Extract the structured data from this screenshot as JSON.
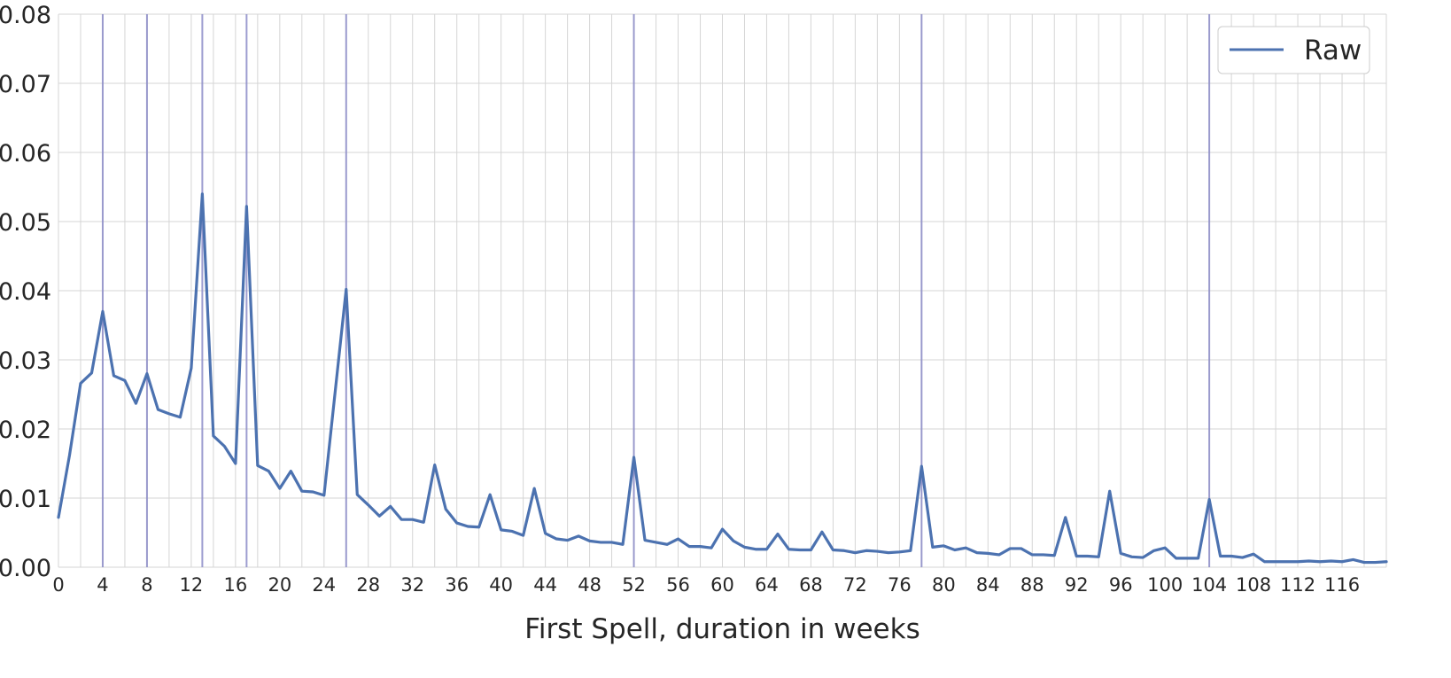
{
  "chart_data": {
    "type": "line",
    "title": "",
    "xlabel": "First Spell, duration in weeks",
    "ylabel": "",
    "xlim": [
      0,
      120
    ],
    "ylim": [
      0,
      0.08
    ],
    "grid": true,
    "legend_position": "top-right",
    "x_ticks": [
      0,
      4,
      8,
      12,
      16,
      20,
      24,
      28,
      32,
      36,
      40,
      44,
      48,
      52,
      56,
      60,
      64,
      68,
      72,
      76,
      80,
      84,
      88,
      92,
      96,
      100,
      104,
      108,
      112,
      116
    ],
    "y_ticks": [
      "0.00",
      "0.01",
      "0.02",
      "0.03",
      "0.04",
      "0.05",
      "0.06",
      "0.07",
      "0.08"
    ],
    "y_tick_values": [
      0,
      0.01,
      0.02,
      0.03,
      0.04,
      0.05,
      0.06,
      0.07,
      0.08
    ],
    "vertical_lines": [
      4,
      8,
      13,
      17,
      26,
      52,
      78,
      104
    ],
    "vertical_line_color": "#8c8cc8",
    "colors": {
      "series": "#4c72b0",
      "grid": "#d5d5d5"
    },
    "series": [
      {
        "name": "Raw",
        "x": [
          0,
          1,
          2,
          3,
          4,
          5,
          6,
          7,
          8,
          9,
          10,
          11,
          12,
          13,
          14,
          15,
          16,
          17,
          18,
          19,
          20,
          21,
          22,
          23,
          24,
          25,
          26,
          27,
          28,
          29,
          30,
          31,
          32,
          33,
          34,
          35,
          36,
          37,
          38,
          39,
          40,
          41,
          42,
          43,
          44,
          45,
          46,
          47,
          48,
          49,
          50,
          51,
          52,
          53,
          54,
          55,
          56,
          57,
          58,
          59,
          60,
          61,
          62,
          63,
          64,
          65,
          66,
          67,
          68,
          69,
          70,
          71,
          72,
          73,
          74,
          75,
          76,
          77,
          78,
          79,
          80,
          81,
          82,
          83,
          84,
          85,
          86,
          87,
          88,
          89,
          90,
          91,
          92,
          93,
          94,
          95,
          96,
          97,
          98,
          99,
          100,
          101,
          102,
          103,
          104,
          105,
          106,
          107,
          108,
          109,
          110,
          111,
          112,
          113,
          114,
          115,
          116,
          117,
          118,
          119,
          120
        ],
        "values": [
          0.0072,
          0.0162,
          0.0266,
          0.0281,
          0.037,
          0.0277,
          0.027,
          0.0237,
          0.028,
          0.0228,
          0.0222,
          0.0217,
          0.0288,
          0.054,
          0.019,
          0.0175,
          0.015,
          0.0522,
          0.0147,
          0.0139,
          0.0114,
          0.0139,
          0.011,
          0.0109,
          0.0104,
          0.0253,
          0.0402,
          0.0105,
          0.009,
          0.0074,
          0.0088,
          0.0069,
          0.0069,
          0.0065,
          0.0148,
          0.0084,
          0.0064,
          0.0059,
          0.0058,
          0.0105,
          0.0054,
          0.0052,
          0.0046,
          0.0114,
          0.0049,
          0.0041,
          0.0039,
          0.0045,
          0.0038,
          0.0036,
          0.0036,
          0.0033,
          0.0159,
          0.0039,
          0.0036,
          0.0033,
          0.0041,
          0.003,
          0.003,
          0.0028,
          0.0055,
          0.0038,
          0.0029,
          0.0026,
          0.0026,
          0.0048,
          0.0026,
          0.0025,
          0.0025,
          0.0051,
          0.0025,
          0.0024,
          0.0021,
          0.0024,
          0.0023,
          0.0021,
          0.0022,
          0.0024,
          0.0146,
          0.0029,
          0.0031,
          0.0025,
          0.0028,
          0.0021,
          0.002,
          0.0018,
          0.0027,
          0.0027,
          0.0018,
          0.0018,
          0.0017,
          0.0072,
          0.0016,
          0.0016,
          0.0015,
          0.011,
          0.002,
          0.0015,
          0.0014,
          0.0024,
          0.0028,
          0.0013,
          0.0013,
          0.0013,
          0.0098,
          0.0016,
          0.0016,
          0.0014,
          0.0019,
          0.0008,
          0.0008,
          0.0008,
          0.0008,
          0.0009,
          0.0008,
          0.0009,
          0.0008,
          0.0011,
          0.0007,
          0.0007,
          0.0008
        ]
      }
    ]
  }
}
